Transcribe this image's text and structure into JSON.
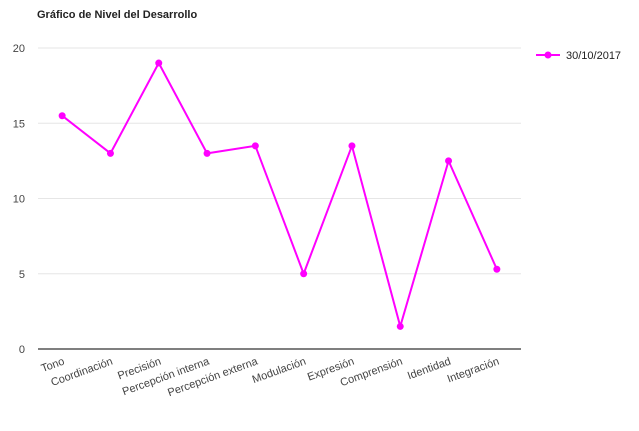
{
  "chart_data": {
    "type": "line",
    "title": "Gráfico de Nivel del Desarrollo",
    "xlabel": "",
    "ylabel": "",
    "categories": [
      "Tono",
      "Coordinación",
      "Precisión",
      "Percepción interna",
      "Percepción externa",
      "Modulación",
      "Expresión",
      "Comprensión",
      "Identidad",
      "Integración"
    ],
    "series": [
      {
        "name": "30/10/2017",
        "values": [
          15.5,
          13,
          19,
          13,
          13.5,
          5,
          13.5,
          1.5,
          12.5,
          5.3
        ]
      }
    ],
    "ylim": [
      0,
      20
    ],
    "yticks": [
      0,
      5,
      10,
      15,
      20
    ],
    "grid": true,
    "legend_position": "top-right",
    "colors": {
      "series": "#ff00ff",
      "grid": "#e6e6e6",
      "axis": "#333333"
    }
  }
}
